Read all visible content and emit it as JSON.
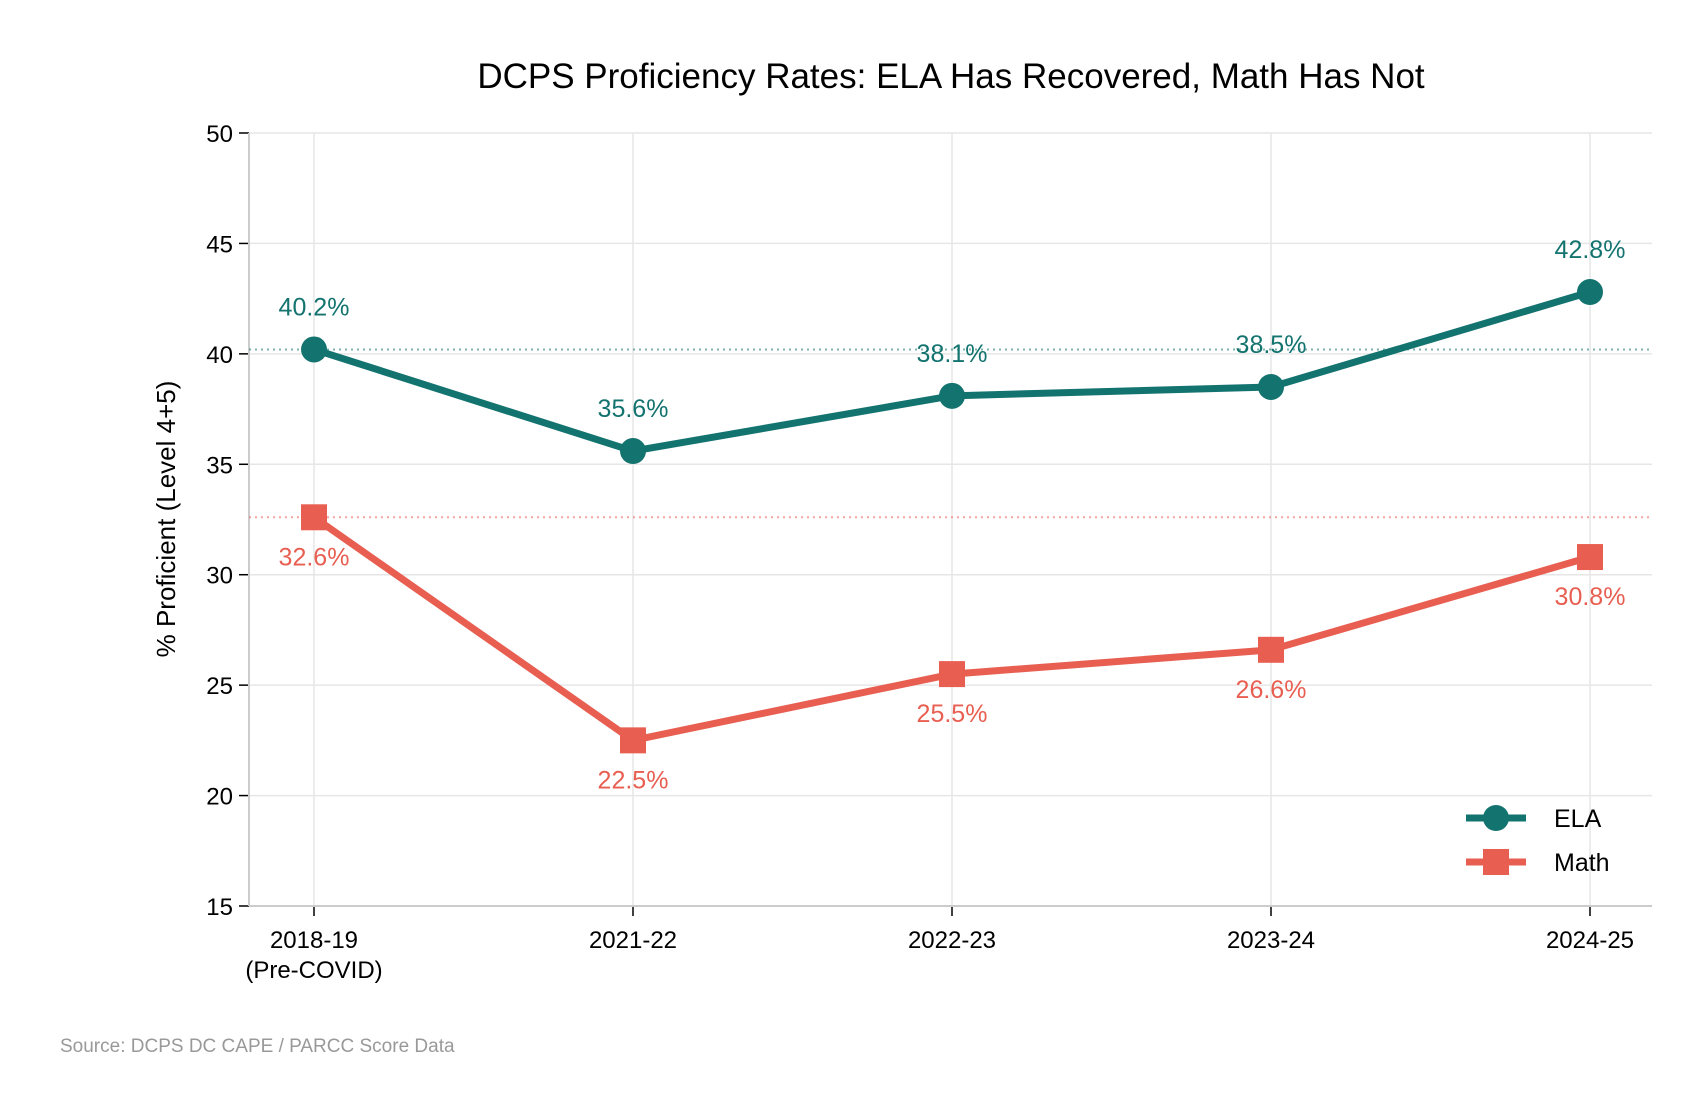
{
  "chart_data": {
    "type": "line",
    "title": "DCPS Proficiency Rates: ELA Has Recovered, Math Has Not",
    "xlabel": "",
    "ylabel": "% Proficient (Level 4+5)",
    "categories": [
      "2018-19\n(Pre-COVID)",
      "2021-22",
      "2022-23",
      "2023-24",
      "2024-25"
    ],
    "ylim": [
      15,
      50
    ],
    "yticks": [
      15,
      20,
      25,
      30,
      35,
      40,
      45,
      50
    ],
    "grid": true,
    "legend": "bottom-right",
    "series": [
      {
        "name": "ELA",
        "values": [
          40.2,
          35.6,
          38.1,
          38.5,
          42.8
        ],
        "labels": [
          "40.2%",
          "35.6%",
          "38.1%",
          "38.5%",
          "42.8%"
        ],
        "color": "#13736f",
        "marker": "circle",
        "baseline": 40.2
      },
      {
        "name": "Math",
        "values": [
          32.6,
          22.5,
          25.5,
          26.6,
          30.8
        ],
        "labels": [
          "32.6%",
          "22.5%",
          "25.5%",
          "26.6%",
          "30.8%"
        ],
        "color": "#e85f52",
        "marker": "square",
        "baseline": 32.6
      }
    ],
    "source": "Source: DCPS DC CAPE / PARCC Score Data"
  }
}
